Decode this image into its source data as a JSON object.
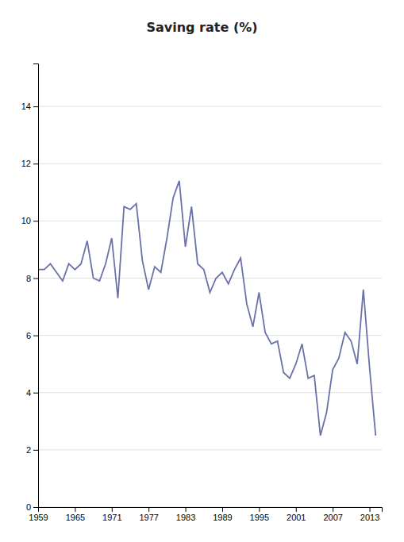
{
  "chart_data": {
    "type": "line",
    "title": "Saving rate (%)",
    "x": [
      1959,
      1960,
      1961,
      1962,
      1963,
      1964,
      1965,
      1966,
      1967,
      1968,
      1969,
      1970,
      1971,
      1972,
      1973,
      1974,
      1975,
      1976,
      1977,
      1978,
      1979,
      1980,
      1981,
      1982,
      1983,
      1984,
      1985,
      1986,
      1987,
      1988,
      1989,
      1990,
      1991,
      1992,
      1993,
      1994,
      1995,
      1996,
      1997,
      1998,
      1999,
      2000,
      2001,
      2002,
      2003,
      2004,
      2005,
      2006,
      2007,
      2008,
      2009,
      2010,
      2011,
      2012,
      2013,
      2014
    ],
    "values": [
      8.3,
      8.3,
      8.5,
      8.2,
      7.9,
      8.5,
      8.3,
      8.5,
      9.3,
      8.0,
      7.9,
      8.5,
      9.4,
      7.3,
      10.5,
      10.4,
      10.6,
      8.6,
      7.6,
      8.4,
      8.2,
      9.4,
      10.8,
      11.4,
      9.1,
      10.5,
      8.5,
      8.3,
      7.5,
      8.0,
      8.2,
      7.8,
      8.3,
      8.7,
      7.1,
      6.3,
      7.5,
      6.1,
      5.7,
      5.8,
      4.7,
      4.5,
      5.0,
      5.7,
      4.5,
      4.6,
      2.5,
      3.3,
      4.8,
      5.2,
      6.1,
      5.8,
      5.0,
      7.6,
      4.9,
      2.5
    ],
    "color": "#6b72a8",
    "xlim": [
      1959,
      2015
    ],
    "xticks": [
      1959,
      1965,
      1971,
      1977,
      1983,
      1989,
      1995,
      2001,
      2007,
      2013
    ],
    "ylim": [
      0,
      15.5
    ],
    "yticks": [
      0,
      2,
      4,
      6,
      8,
      10,
      12,
      14
    ],
    "grid": true
  }
}
